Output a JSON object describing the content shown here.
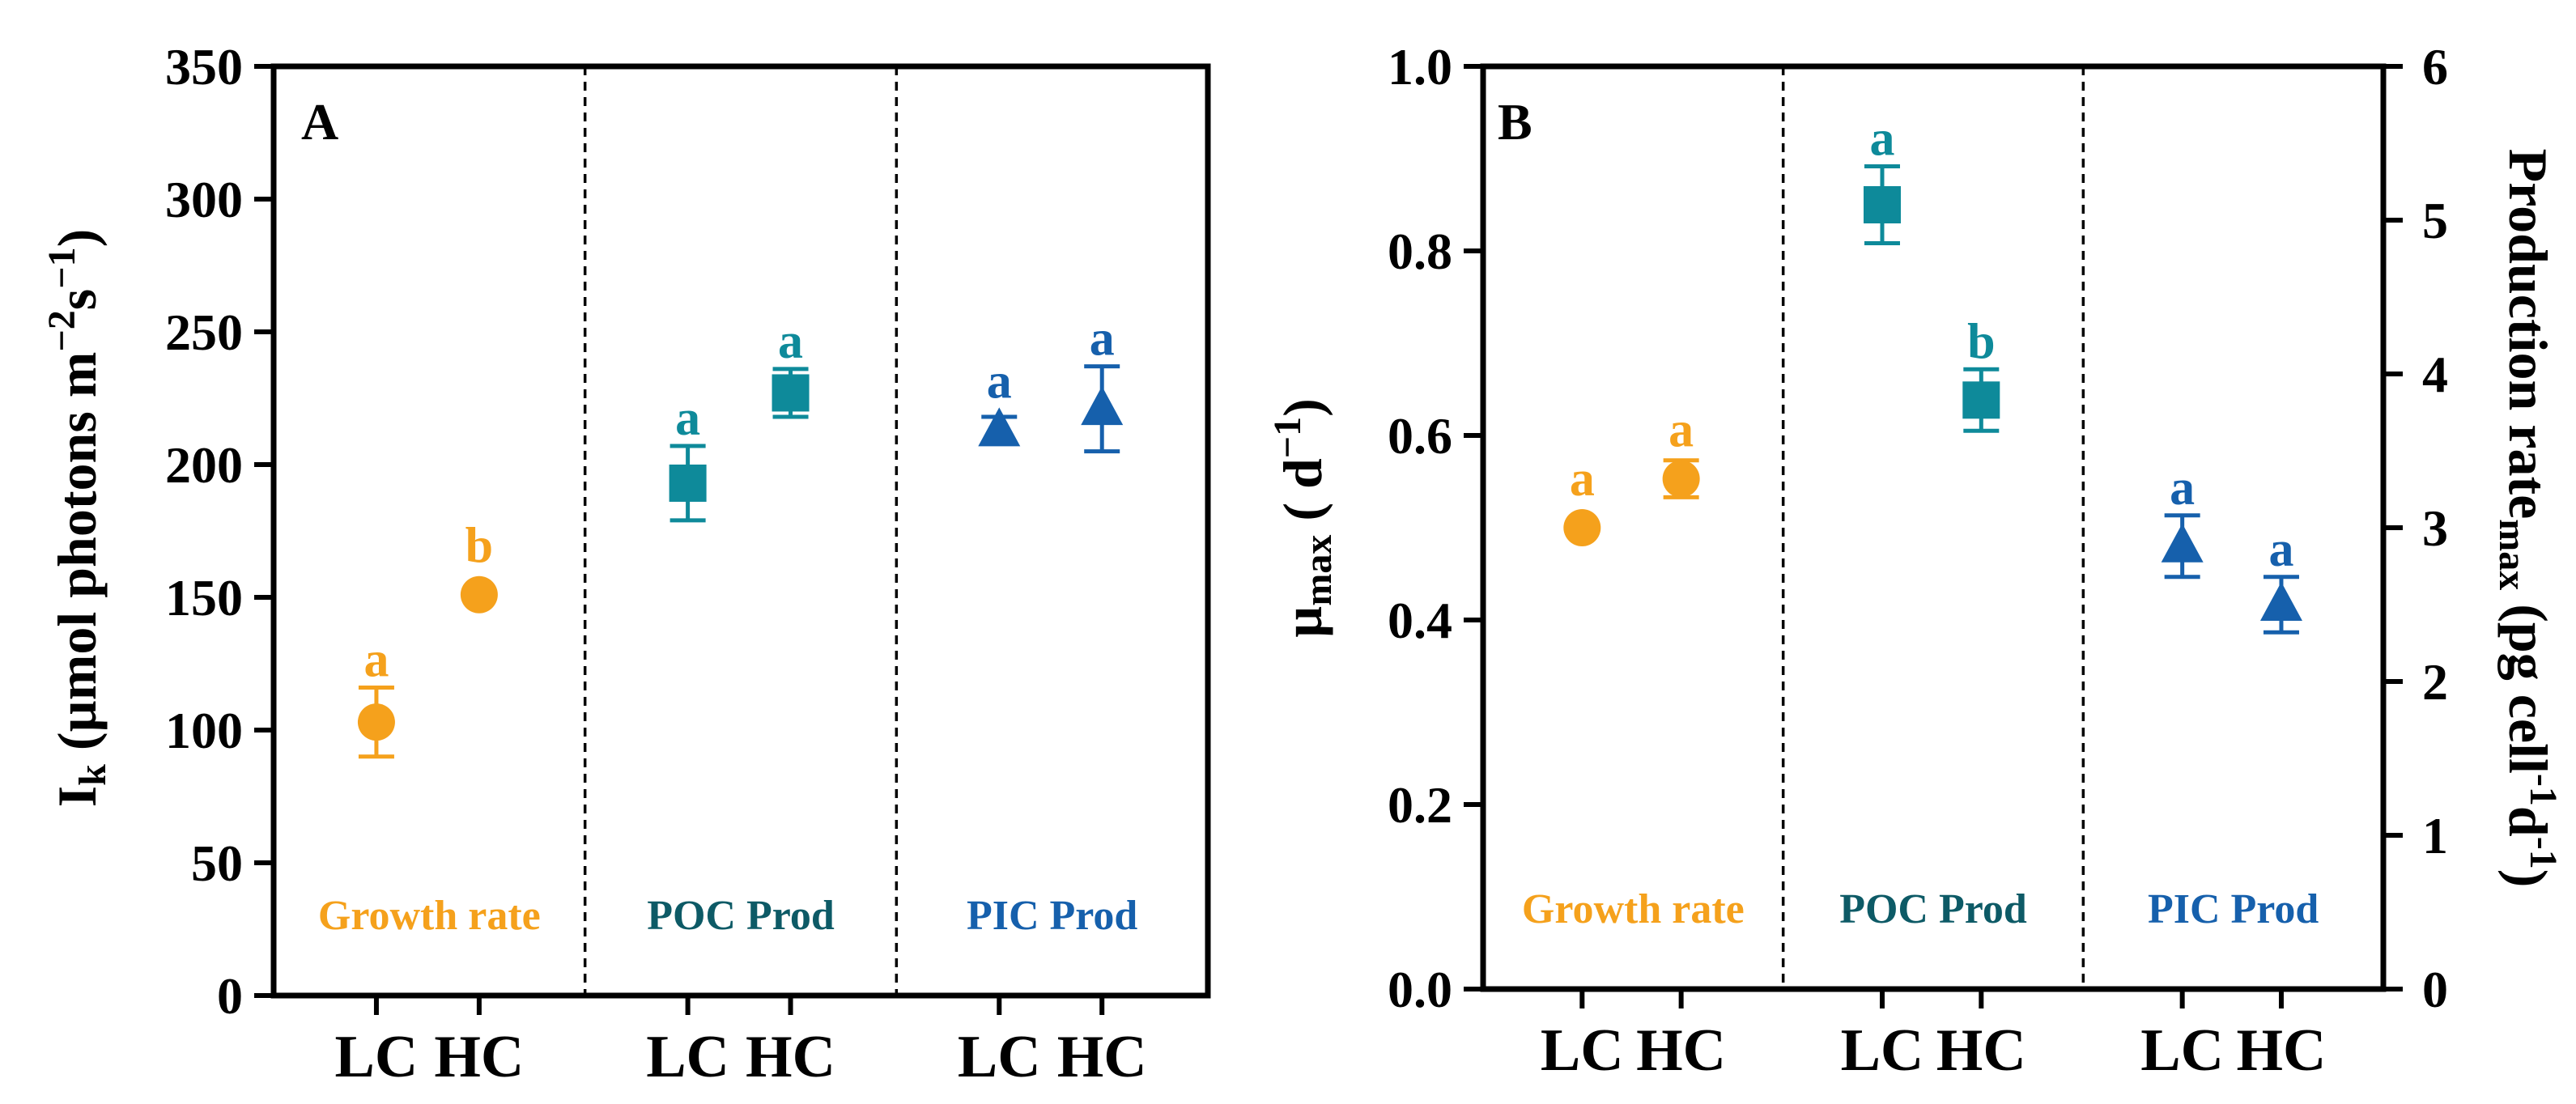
{
  "figure": {
    "panels": [
      "A",
      "B"
    ]
  },
  "chart_data": [
    {
      "panel": "A",
      "type": "scatter",
      "ylabel": {
        "main": "I",
        "sub": "k",
        "unit": "(µmol photons m",
        "exp1": "−2",
        "mid": "s",
        "exp2": "−1",
        "end": ")"
      },
      "ylim": [
        0,
        350
      ],
      "yticks": [
        0,
        50,
        100,
        150,
        200,
        250,
        300,
        350
      ],
      "groups": [
        {
          "label": "Growth rate",
          "color": "#F5A11C",
          "marker": "circle",
          "points": [
            {
              "cat": "LC",
              "value": 103,
              "err_low": 13,
              "err_high": 13,
              "letter": "a"
            },
            {
              "cat": "HC",
              "value": 151,
              "err_low": 0,
              "err_high": 0,
              "letter": "b"
            }
          ]
        },
        {
          "label": "POC Prod",
          "color": "#0E8A9A",
          "label_color": "#0D5A66",
          "marker": "square",
          "points": [
            {
              "cat": "LC",
              "value": 193,
              "err_low": 14,
              "err_high": 14,
              "letter": "a"
            },
            {
              "cat": "HC",
              "value": 227,
              "err_low": 9,
              "err_high": 9,
              "letter": "a"
            }
          ]
        },
        {
          "label": "PIC Prod",
          "color": "#1660AC",
          "marker": "triangle",
          "points": [
            {
              "cat": "LC",
              "value": 213,
              "err_low": 5,
              "err_high": 5,
              "letter": "a"
            },
            {
              "cat": "HC",
              "value": 221,
              "err_low": 16,
              "err_high": 16,
              "letter": "a"
            }
          ]
        }
      ]
    },
    {
      "panel": "B",
      "type": "scatter",
      "ylabel": {
        "main": "µ",
        "sub": "max",
        "unit": "( d",
        "exp1": "−1",
        "end": ")"
      },
      "ylabel_right": {
        "main": "Production rate",
        "sub": "max",
        "unit": "(pg cell",
        "exp1": "-1",
        "mid": "d",
        "exp2": "-1",
        "end": ")"
      },
      "ylim": [
        0,
        1.0
      ],
      "yticks": [
        "0.0",
        "0.2",
        "0.4",
        "0.6",
        "0.8",
        "1.0"
      ],
      "ylim_right": [
        0,
        6
      ],
      "yticks_right": [
        "0",
        "1",
        "2",
        "3",
        "4",
        "5",
        "6"
      ],
      "groups": [
        {
          "label": "Growth rate",
          "color": "#F5A11C",
          "marker": "circle",
          "axis": "left",
          "points": [
            {
              "cat": "LC",
              "value": 0.5,
              "err_low": 0,
              "err_high": 0,
              "letter": "a"
            },
            {
              "cat": "HC",
              "value": 0.553,
              "err_low": 0.02,
              "err_high": 0.02,
              "letter": "a"
            }
          ]
        },
        {
          "label": "POC Prod",
          "color": "#0E8A9A",
          "label_color": "#0D5A66",
          "marker": "square",
          "axis": "right",
          "points": [
            {
              "cat": "LC",
              "value": 5.1,
              "err_low": 0.25,
              "err_high": 0.25,
              "letter": "a"
            },
            {
              "cat": "HC",
              "value": 3.83,
              "err_low": 0.2,
              "err_high": 0.2,
              "letter": "b"
            }
          ]
        },
        {
          "label": "PIC Prod",
          "color": "#1660AC",
          "marker": "triangle",
          "axis": "right",
          "points": [
            {
              "cat": "LC",
              "value": 2.88,
              "err_low": 0.2,
              "err_high": 0.2,
              "letter": "a"
            },
            {
              "cat": "HC",
              "value": 2.5,
              "err_low": 0.18,
              "err_high": 0.18,
              "letter": "a"
            }
          ]
        }
      ]
    }
  ]
}
